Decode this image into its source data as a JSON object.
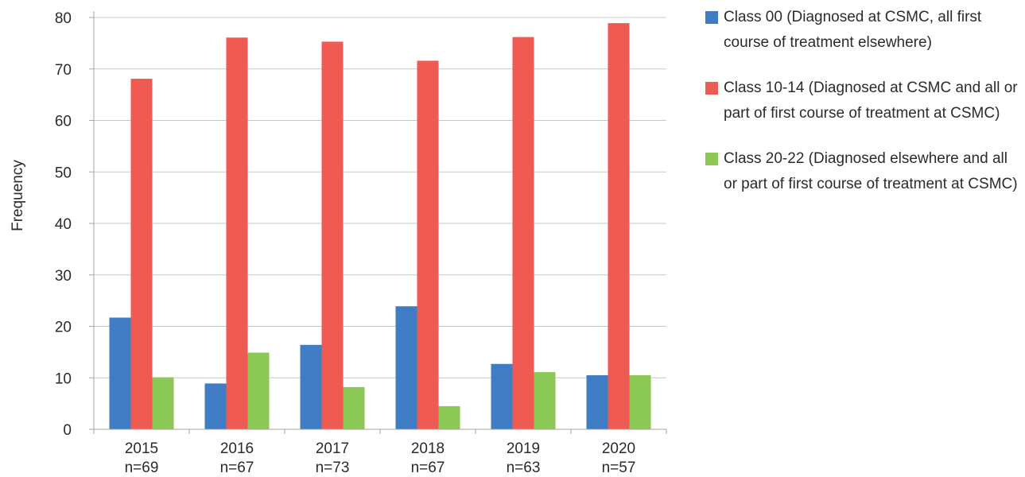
{
  "chart_data": {
    "type": "bar",
    "categories": [
      "2015",
      "2016",
      "2017",
      "2018",
      "2019",
      "2020"
    ],
    "category_sublabels": [
      "n=69",
      "n=67",
      "n=73",
      "n=67",
      "n=63",
      "n=57"
    ],
    "series": [
      {
        "name": "Class 00 (Diagnosed at CSMC, all first course of treatment elsewhere)",
        "color": "#3f7cc4",
        "values": [
          21.7,
          8.9,
          16.4,
          23.9,
          12.7,
          10.5
        ]
      },
      {
        "name": "Class 10-14 (Diagnosed at CSMC and all or part of first course of treatment at CSMC)",
        "color": "#ef5a52",
        "values": [
          68.1,
          76.1,
          75.3,
          71.6,
          76.2,
          78.9
        ]
      },
      {
        "name": "Class 20-22 (Diagnosed elsewhere and all or part of first course of treatment at CSMC)",
        "color": "#8cc855",
        "values": [
          10.1,
          14.9,
          8.2,
          4.5,
          11.1,
          10.5
        ]
      }
    ],
    "title": "",
    "xlabel": "",
    "ylabel": "Frequency",
    "ylim": [
      0,
      80
    ],
    "yticks": [
      0,
      10,
      20,
      30,
      40,
      50,
      60,
      70,
      80
    ],
    "grid": true,
    "legend_position": "right"
  }
}
